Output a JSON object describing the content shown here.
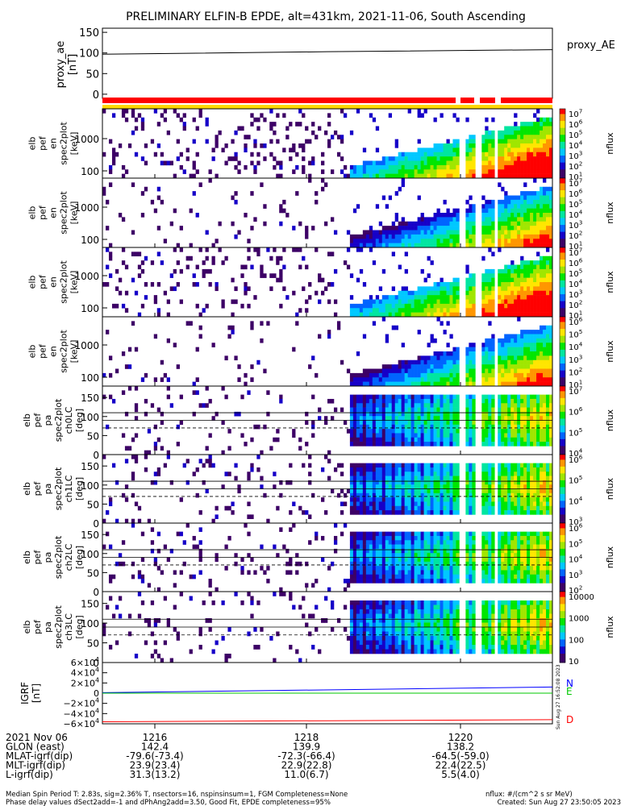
{
  "title": "PRELIMINARY ELFIN-B EPDE, alt=431km, 2021-11-06, South Ascending",
  "colors": {
    "proxy_line": "#000000",
    "status_red": "#ff0000",
    "status_yellow": "#ffd800",
    "status_white": "#ffffff",
    "igrf_n": "#0000ff",
    "igrf_e": "#00c800",
    "igrf_d": "#ff0000"
  },
  "created_stamp": "Sun Aug 27 16:52:08 2023",
  "chart_data": [
    {
      "id": "proxy_ae",
      "type": "line",
      "ylabel": [
        "proxy_ae",
        "[nT]"
      ],
      "yticks": [
        "150",
        "100",
        "50",
        "0"
      ],
      "ylim": [
        -10,
        160
      ],
      "series": [
        {
          "name": "proxy_AE",
          "x": [
            0,
            0.5,
            1
          ],
          "values": [
            97,
            103,
            108
          ]
        }
      ]
    },
    {
      "id": "energy_spectrograms",
      "type": "heatmap",
      "panels": [
        {
          "ylabel": [
            "elb",
            "pef",
            "en",
            "spec2plot",
            "[keV]"
          ],
          "yticks": [
            "1000",
            "100"
          ],
          "colorbar": {
            "ticks": [
              "10^7",
              "10^6",
              "10^5",
              "10^4",
              "10^3",
              "10^2",
              "10^1"
            ],
            "label": "nflux"
          }
        },
        {
          "ylabel": [
            "elb",
            "pef",
            "en",
            "spec2plot",
            "[keV]"
          ],
          "yticks": [
            "1000",
            "100"
          ],
          "colorbar": {
            "ticks": [
              "10^7",
              "10^6",
              "10^5",
              "10^4",
              "10^3",
              "10^2",
              "10^1"
            ],
            "label": "nflux"
          }
        },
        {
          "ylabel": [
            "elb",
            "pef",
            "en",
            "spec2plot",
            "[keV]"
          ],
          "yticks": [
            "1000",
            "100"
          ],
          "colorbar": {
            "ticks": [
              "10^7",
              "10^6",
              "10^5",
              "10^4",
              "10^3",
              "10^2",
              "10^1"
            ],
            "label": "nflux"
          }
        },
        {
          "ylabel": [
            "elb",
            "pef",
            "en",
            "spec2plot",
            "[keV]"
          ],
          "yticks": [
            "1000",
            "100"
          ],
          "colorbar": {
            "ticks": [
              "10^6",
              "10^5",
              "10^4",
              "10^3",
              "10^2",
              "10^1"
            ],
            "label": "nflux"
          }
        }
      ]
    },
    {
      "id": "pitch_angle_spectrograms",
      "type": "heatmap",
      "panels": [
        {
          "ylabel": [
            "elb",
            "pef",
            "pa",
            "spec2plot",
            "ch0LC",
            "[deg]"
          ],
          "yticks": [
            "150",
            "100",
            "50",
            "0"
          ],
          "colorbar": {
            "ticks": [
              "10^7",
              "10^6",
              "10^5",
              "10^4"
            ],
            "label": "nflux"
          }
        },
        {
          "ylabel": [
            "elb",
            "pef",
            "pa",
            "spec2plot",
            "ch1LC",
            "[deg]"
          ],
          "yticks": [
            "150",
            "100",
            "50",
            "0"
          ],
          "colorbar": {
            "ticks": [
              "10^6",
              "10^5",
              "10^4",
              "10^3"
            ],
            "label": "nflux"
          }
        },
        {
          "ylabel": [
            "elb",
            "pef",
            "pa",
            "spec2plot",
            "ch2LC",
            "[deg]"
          ],
          "yticks": [
            "150",
            "100",
            "50",
            "0"
          ],
          "colorbar": {
            "ticks": [
              "10^6",
              "10^5",
              "10^4",
              "10^3",
              "10^2"
            ],
            "label": "nflux"
          }
        },
        {
          "ylabel": [
            "elb",
            "pef",
            "pa",
            "spec2plot",
            "ch3LC",
            "[deg]"
          ],
          "yticks": [
            "150",
            "100",
            "50",
            "0"
          ],
          "colorbar": {
            "ticks": [
              "10000",
              "1000",
              "100",
              "10"
            ],
            "label": "nflux"
          }
        }
      ]
    },
    {
      "id": "igrf",
      "type": "line",
      "ylabel": [
        "IGRF",
        "[nT]"
      ],
      "yticks": [
        "6×10^4",
        "4×10^4",
        "2×10^4",
        "0",
        "−2×10^4",
        "−4×10^4",
        "−6×10^4"
      ],
      "ylim": [
        -60000,
        60000
      ],
      "series": [
        {
          "name": "N",
          "x": [
            0,
            1
          ],
          "values": [
            1000,
            12000
          ]
        },
        {
          "name": "E",
          "x": [
            0,
            1
          ],
          "values": [
            0,
            0
          ]
        },
        {
          "name": "D",
          "x": [
            0,
            1
          ],
          "values": [
            -56000,
            -52000
          ]
        }
      ]
    }
  ],
  "x_axis": {
    "rows": [
      {
        "label": "2021 Nov 06",
        "values": [
          "1216",
          "1218",
          "1220"
        ]
      },
      {
        "label": "GLON (east)",
        "values": [
          "142.4",
          "139.9",
          "138.2"
        ]
      },
      {
        "label": "MLAT-igrf(dip)",
        "values": [
          "-79.6(-73.4)",
          "-72.3(-66.4)",
          "-64.5(-59.0)"
        ]
      },
      {
        "label": "MLT-igrf(dip)",
        "values": [
          "23.9(23.4)",
          "22.9(22.8)",
          "22.4(22.5)"
        ]
      },
      {
        "label": "L-igrf(dip)",
        "values": [
          "31.3(13.2)",
          "11.0(6.7)",
          "5.5(4.0)"
        ]
      }
    ]
  },
  "footer": {
    "line1": "Median Spin Period T: 2.83s, sig=2.36% T, nsectors=16, nspinsinsum=1, FGM Completeness=None",
    "line2": "Phase delay values dSect2add=-1 and dPhAng2add=3.50, Good Fit, EPDE completeness=95%",
    "units": "nflux: #/(cm^2 s sr MeV)",
    "created": "Created: Sun Aug 27 23:50:05 2023"
  }
}
